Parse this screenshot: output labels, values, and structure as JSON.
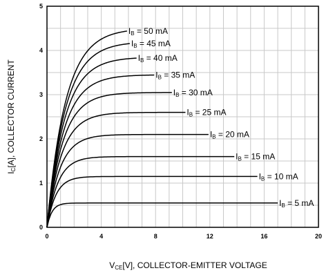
{
  "chart_data": {
    "type": "line",
    "x_tick_labels": [
      "0",
      "4",
      "8",
      "12",
      "16",
      "20"
    ],
    "y_tick_labels": [
      "0",
      "1",
      "2",
      "3",
      "4",
      "5"
    ],
    "xlim": [
      0,
      20
    ],
    "ylim": [
      0,
      5
    ],
    "grid": true,
    "xlabel": {
      "main": "V",
      "sub": "CE",
      "rest": "[V], COLLECTOR-EMITTER VOLTAGE"
    },
    "ylabel": {
      "main": "I",
      "sub": "C",
      "rest": "[A], COLLECTOR CURRENT"
    },
    "series": [
      {
        "label_main": "I",
        "label_sub": "B",
        "label_rest": " = 5 mA",
        "sat": 0.55,
        "x_end": 17.0
      },
      {
        "label_main": "I",
        "label_sub": "B",
        "label_rest": " = 10 mA",
        "sat": 1.15,
        "x_end": 15.5
      },
      {
        "label_main": "I",
        "label_sub": "B",
        "label_rest": " = 15 mA",
        "sat": 1.6,
        "x_end": 13.8
      },
      {
        "label_main": "I",
        "label_sub": "B",
        "label_rest": " = 20 mA",
        "sat": 2.1,
        "x_end": 11.9
      },
      {
        "label_main": "I",
        "label_sub": "B",
        "label_rest": " = 25 mA",
        "sat": 2.6,
        "x_end": 10.2
      },
      {
        "label_main": "I",
        "label_sub": "B",
        "label_rest": " = 30 mA",
        "sat": 3.05,
        "x_end": 9.2
      },
      {
        "label_main": "I",
        "label_sub": "B",
        "label_rest": " = 35 mA",
        "sat": 3.45,
        "x_end": 7.9
      },
      {
        "label_main": "I",
        "label_sub": "B",
        "label_rest": " = 40 mA",
        "sat": 3.85,
        "x_end": 6.6
      },
      {
        "label_main": "I",
        "label_sub": "B",
        "label_rest": " = 45 mA",
        "sat": 4.2,
        "x_end": 6.1
      },
      {
        "label_main": "I",
        "label_sub": "B",
        "label_rest": " = 50 mA",
        "sat": 4.5,
        "x_end": 5.9
      }
    ]
  }
}
